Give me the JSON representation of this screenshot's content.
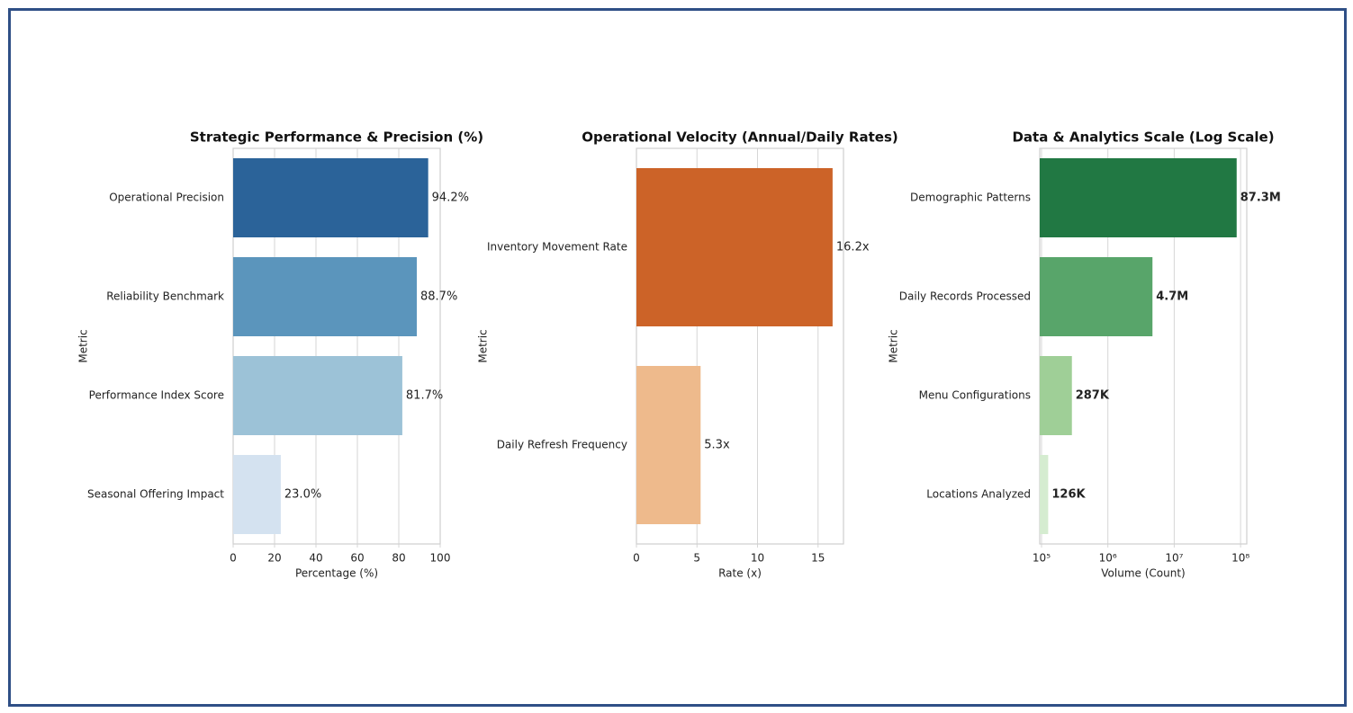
{
  "chart_data": [
    {
      "type": "bar",
      "orientation": "horizontal",
      "title": "Strategic Performance & Precision (%)",
      "xlabel": "Percentage (%)",
      "ylabel": "Metric",
      "categories": [
        "Operational Precision",
        "Reliability Benchmark",
        "Performance Index Score",
        "Seasonal Offering Impact"
      ],
      "values": [
        94.2,
        88.7,
        81.7,
        23.0
      ],
      "value_labels": [
        "94.2%",
        "88.7%",
        "81.7%",
        "23.0%"
      ],
      "colors": [
        "#2b6399",
        "#5b95bc",
        "#9cc2d7",
        "#d4e2f0"
      ],
      "xlim": [
        0,
        100
      ],
      "xticks": [
        0,
        20,
        40,
        60,
        80,
        100
      ],
      "grid": true,
      "log_x": false
    },
    {
      "type": "bar",
      "orientation": "horizontal",
      "title": "Operational Velocity (Annual/Daily Rates)",
      "xlabel": "Rate (x)",
      "ylabel": "Metric",
      "categories": [
        "Inventory Movement Rate",
        "Daily Refresh Frequency"
      ],
      "values": [
        16.2,
        5.3
      ],
      "value_labels": [
        "16.2x",
        "5.3x"
      ],
      "colors": [
        "#cc6328",
        "#eeba8c"
      ],
      "xlim": [
        0,
        17.1
      ],
      "xticks": [
        0,
        5,
        10,
        15
      ],
      "grid": true,
      "log_x": false
    },
    {
      "type": "bar",
      "orientation": "horizontal",
      "title": "Data & Analytics Scale (Log Scale)",
      "xlabel": "Volume (Count)",
      "ylabel": "Metric",
      "categories": [
        "Demographic Patterns",
        "Daily Records Processed",
        "Menu Configurations",
        "Locations Analyzed"
      ],
      "values": [
        87300000,
        4700000,
        287000,
        126000
      ],
      "value_labels": [
        "87.3M",
        "4.7M",
        "287K",
        "126K"
      ],
      "colors": [
        "#217843",
        "#58a56a",
        "#9fcf97",
        "#d5ecd0"
      ],
      "xlim": [
        94000,
        124000000
      ],
      "xticks": [
        {
          "value": 100000,
          "label": "10⁵"
        },
        {
          "value": 1000000,
          "label": "10⁶"
        },
        {
          "value": 10000000,
          "label": "10⁷"
        },
        {
          "value": 100000000,
          "label": "10⁸"
        }
      ],
      "grid": true,
      "log_x": true
    }
  ]
}
